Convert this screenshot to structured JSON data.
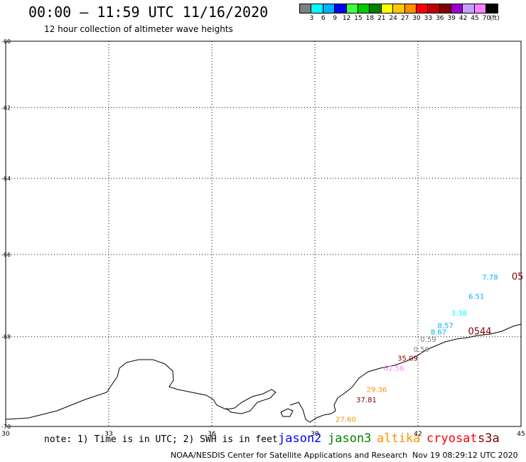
{
  "header": {
    "title": "00:00 – 11:59 UTC 11/16/2020",
    "subtitle": "12 hour collection of altimeter wave heights"
  },
  "colorbar": {
    "colors": [
      "#808080",
      "#00ffff",
      "#00b0ff",
      "#0000ff",
      "#40ff40",
      "#00c800",
      "#008000",
      "#ffff00",
      "#ffc800",
      "#ff9000",
      "#ff0000",
      "#c00000",
      "#800000",
      "#9900cc",
      "#c8a0ff",
      "#ff80ff",
      "#000000"
    ],
    "labels": [
      "3",
      "6",
      "9",
      "12",
      "15",
      "18",
      "21",
      "24",
      "27",
      "30",
      "33",
      "36",
      "39",
      "42",
      "45",
      "70"
    ],
    "unit": "(ft)"
  },
  "axes": {
    "lon_ticks": [
      "30",
      "33",
      "36",
      "39",
      "42",
      "45"
    ],
    "lat_ticks": [
      "-60",
      "-62",
      "-64",
      "-66",
      "-68",
      "-70"
    ]
  },
  "chart_data": {
    "type": "scatter",
    "xlim": [
      30,
      45
    ],
    "ylim": [
      -70,
      -60
    ],
    "projection": "mercator",
    "grid": true,
    "points": [
      {
        "lon": 44.1,
        "lat": -66.63,
        "label": "7.78",
        "color": "#00b0ff"
      },
      {
        "lon": 44.9,
        "lat": -66.63,
        "label": "05",
        "color": "#800000"
      },
      {
        "lon": 43.7,
        "lat": -67.1,
        "label": "6.51",
        "color": "#00b0ff"
      },
      {
        "lon": 43.2,
        "lat": -67.5,
        "label": "3.38",
        "color": "#00ffff"
      },
      {
        "lon": 42.8,
        "lat": -67.8,
        "label": "8.57",
        "color": "#00b0ff"
      },
      {
        "lon": 42.6,
        "lat": -67.95,
        "label": "8.67",
        "color": "#00b0ff"
      },
      {
        "lon": 43.8,
        "lat": -67.95,
        "label": "0544",
        "color": "#800000"
      },
      {
        "lon": 42.3,
        "lat": -68.12,
        "label": "0.59",
        "color": "#808080"
      },
      {
        "lon": 42.1,
        "lat": -68.35,
        "label": "0.59",
        "color": "#808080"
      },
      {
        "lon": 41.7,
        "lat": -68.55,
        "label": "35.09",
        "color": "#800000"
      },
      {
        "lon": 41.3,
        "lat": -68.78,
        "label": "62.56",
        "color": "#ff80ff"
      },
      {
        "lon": 40.8,
        "lat": -69.25,
        "label": "29.36",
        "color": "#ff9000"
      },
      {
        "lon": 40.5,
        "lat": -69.48,
        "label": "37.81",
        "color": "#800000"
      },
      {
        "lon": 39.9,
        "lat": -69.9,
        "label": "27.60",
        "color": "#ff9000"
      }
    ]
  },
  "note": "note: 1) Time is in UTC; 2) SWH is in feet",
  "legend": [
    {
      "label": "jason2",
      "color": "#0000ff"
    },
    {
      "label": "jason3",
      "color": "#008000"
    },
    {
      "label": "altika",
      "color": "#ff9000"
    },
    {
      "label": "cryosat",
      "color": "#ff0000"
    },
    {
      "label": "s3a",
      "color": "#800000"
    }
  ],
  "footer": {
    "credit": "NOAA/NESDIS Center for Satellite Applications and Research",
    "timestamp": "Nov 19 08:29:12 UTC 2020"
  }
}
